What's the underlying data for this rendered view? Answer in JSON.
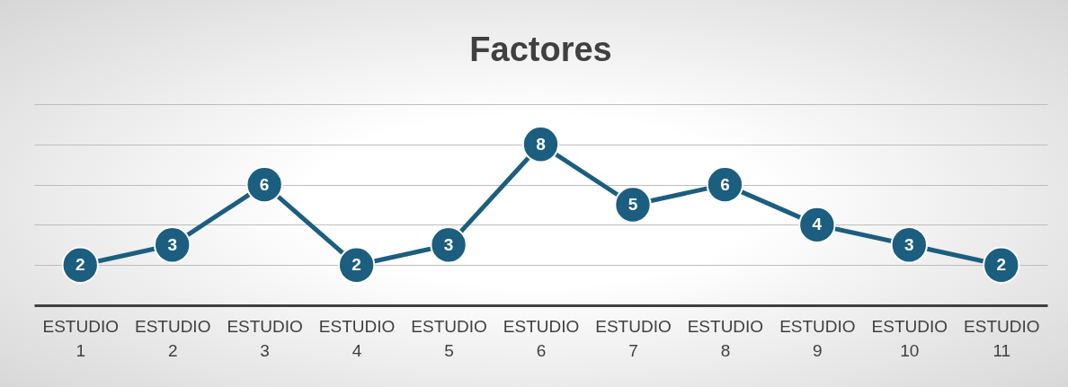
{
  "chart_data": {
    "type": "line",
    "title": "Factores",
    "categories": [
      "ESTUDIO 1",
      "ESTUDIO 2",
      "ESTUDIO 3",
      "ESTUDIO 4",
      "ESTUDIO 5",
      "ESTUDIO 6",
      "ESTUDIO 7",
      "ESTUDIO 8",
      "ESTUDIO 9",
      "ESTUDIO 10",
      "ESTUDIO 11"
    ],
    "series": [
      {
        "color": "#1b5e80",
        "values": [
          2,
          3,
          6,
          2,
          3,
          8,
          5,
          6,
          4,
          3,
          2
        ]
      }
    ],
    "ylim": [
      0,
      10
    ],
    "yticks": [
      {
        "value": 0,
        "label": null
      },
      {
        "value": 2,
        "label": null
      },
      {
        "value": 4,
        "label": null
      },
      {
        "value": 6,
        "label": null
      },
      {
        "value": 8,
        "label": null
      },
      {
        "value": 10,
        "label": null
      }
    ],
    "grid": "y",
    "tick_labels": "x",
    "marker": "circle",
    "line_style": "solid",
    "data_labels": true
  }
}
